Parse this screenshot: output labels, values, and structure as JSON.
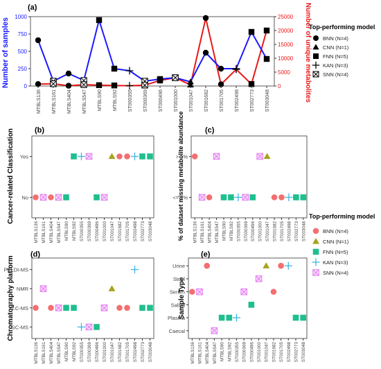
{
  "categories": [
    "MTBLS136",
    "MTBLS161",
    "MTBLS404",
    "MTBLS547",
    "MTBLS90",
    "MTBLS92",
    "ST000355",
    "ST000369",
    "ST000496",
    "ST001000",
    "ST001047",
    "ST001682",
    "ST001705",
    "ST002498",
    "ST002773",
    "ST003048"
  ],
  "models": {
    "BNN": {
      "label": "BNN (N=4)",
      "color": "#f36f6f",
      "fill_top": "#000000"
    },
    "CNN": {
      "label": "CNN (N=1)",
      "color": "#a7a21b"
    },
    "FNN": {
      "label": "FNN (N=5)",
      "color": "#1fbf8f"
    },
    "KAN": {
      "label": "KAN (N=3)",
      "color": "#3fb6e6"
    },
    "SNN": {
      "label": "SNN (N=4)",
      "color": "#e27cf0"
    }
  },
  "model_by_dataset": [
    "BNN",
    "SNN",
    "BNN",
    "SNN",
    "FNN",
    "FNN",
    "KAN",
    "SNN",
    "FNN",
    "SNN",
    "CNN",
    "BNN",
    "BNN",
    "KAN",
    "FNN",
    "FNN"
  ],
  "legend": {
    "title": "Top-performing model"
  },
  "panels": {
    "a": {
      "tag": "(a)",
      "ylabel_left": "Number of samples",
      "ylabel_right": "Number of unique metabolites",
      "left_color": "#1a1aff",
      "right_color": "#e81818"
    },
    "b": {
      "tag": "(b)",
      "ylabel": "Cancer-related Classification"
    },
    "c": {
      "tag": "(c)",
      "ylabel": "% of dataset missing metabolite abundance"
    },
    "d": {
      "tag": "(d)",
      "ylabel": "Chromatography platform"
    },
    "e": {
      "tag": "(e)",
      "ylabel": "Sample Type"
    }
  },
  "chart_data": [
    {
      "type": "line",
      "panel": "a",
      "categories": [
        "MTBLS136",
        "MTBLS161",
        "MTBLS404",
        "MTBLS547",
        "MTBLS90",
        "MTBLS92",
        "ST000355",
        "ST000369",
        "ST000496",
        "ST001000",
        "ST001047",
        "ST001682",
        "ST001705",
        "ST002498",
        "ST002773",
        "ST003048"
      ],
      "series": [
        {
          "name": "Number of samples",
          "axis": "left",
          "values": [
            660,
            70,
            180,
            80,
            950,
            250,
            220,
            70,
            100,
            120,
            60,
            480,
            250,
            250,
            780,
            390
          ]
        },
        {
          "name": "Number of unique metabolites",
          "axis": "right",
          "values": [
            700,
            800,
            100,
            500,
            300,
            200,
            100,
            300,
            2000,
            3000,
            400,
            24500,
            600,
            6000,
            700,
            20000
          ]
        }
      ],
      "left_ylim": [
        0,
        1000
      ],
      "left_ticks": [
        "0",
        "250",
        "500",
        "750",
        "1000"
      ],
      "right_ylim": [
        0,
        25000
      ],
      "right_ticks": [
        "0",
        "5000",
        "10000",
        "15000",
        "20000",
        "25000"
      ]
    },
    {
      "type": "scatter",
      "panel": "b",
      "ycategories": [
        "No",
        "Yes"
      ],
      "values": [
        "No",
        "No",
        "No",
        "No",
        "No",
        "Yes",
        "Yes",
        "Yes",
        "No",
        "No",
        "Yes",
        "Yes",
        "Yes",
        "Yes",
        "Yes",
        "Yes"
      ]
    },
    {
      "type": "scatter",
      "panel": "c",
      "ycategories": [
        "<= 1%",
        "> 1%"
      ],
      "values": [
        "> 1%",
        "<= 1%",
        "<= 1%",
        "> 1%",
        "<= 1%",
        "<= 1%",
        "<= 1%",
        "<= 1%",
        "<= 1%",
        "> 1%",
        "> 1%",
        "<= 1%",
        "<= 1%",
        "<= 1%",
        "<= 1%",
        "<= 1%"
      ]
    },
    {
      "type": "scatter",
      "panel": "d",
      "ycategories": [
        "GC-MS",
        "LC-MS",
        "NMR",
        "PELDI-MS"
      ],
      "values": [
        "LC-MS",
        "NMR",
        "LC-MS",
        "LC-MS",
        "LC-MS",
        "LC-MS",
        "GC-MS",
        "GC-MS",
        "GC-MS",
        "LC-MS",
        "NMR",
        "LC-MS",
        "LC-MS",
        "PELDI-MS",
        "LC-MS",
        "LC-MS"
      ]
    },
    {
      "type": "scatter",
      "panel": "e",
      "ycategories": [
        "Caecal",
        "Plasma",
        "Saliva",
        "Serum",
        "Stool",
        "Urine"
      ],
      "values": [
        "Serum",
        "Serum",
        "Urine",
        "Caecal",
        "Plasma",
        "Plasma",
        "Plasma",
        "Serum",
        "Saliva",
        "Stool",
        "Urine",
        "Serum",
        "Urine",
        "Urine",
        "Plasma",
        "Plasma"
      ]
    }
  ]
}
